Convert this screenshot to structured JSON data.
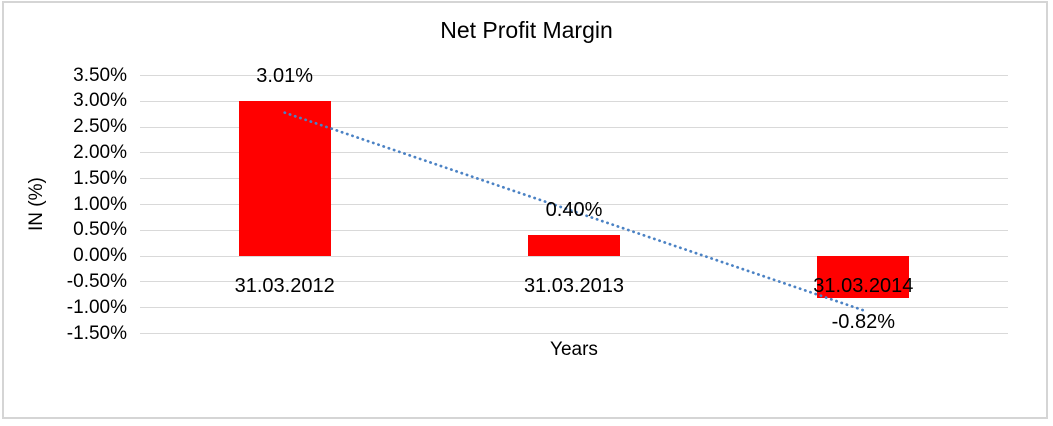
{
  "chart_data": {
    "type": "bar",
    "title": "Net Profit Margin",
    "xlabel": "Years",
    "ylabel": "IN (%)",
    "categories": [
      "31.03.2012",
      "31.03.2013",
      "31.03.2014"
    ],
    "values": [
      3.01,
      0.4,
      -0.82
    ],
    "data_labels": [
      "3.01%",
      "0.40%",
      "-0.82%"
    ],
    "ylim": [
      -1.5,
      3.5
    ],
    "ytick_step": 0.5,
    "ytick_labels": [
      "3.50%",
      "3.00%",
      "2.50%",
      "2.00%",
      "1.50%",
      "1.00%",
      "0.50%",
      "0.00%",
      "-0.50%",
      "-1.00%",
      "-1.50%"
    ],
    "grid": true,
    "legend": "none",
    "bar_color": "#FF0000",
    "gridline_color": "#D9D9D9",
    "frame_color": "#D5D5D5",
    "text_color": "#000000",
    "trendline": {
      "type": "linear",
      "style": "dotted",
      "color": "#4B82C4",
      "start_value": 2.78,
      "end_value": -1.05
    }
  }
}
